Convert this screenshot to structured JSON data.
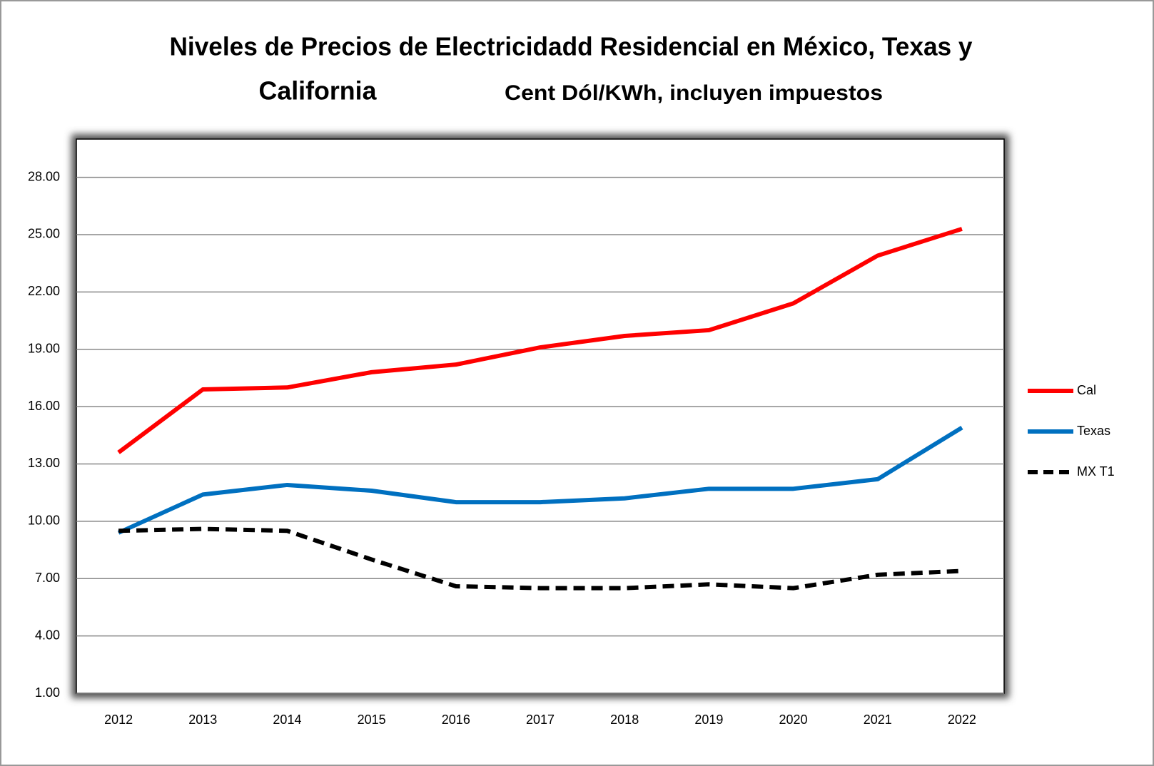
{
  "chart_data": {
    "type": "line",
    "title": [
      "Niveles de Precios de Electricidadd Residencial en México, Texas y",
      "California"
    ],
    "subtitle": "Cent Dól/KWh, incluyen impuestos",
    "categories": [
      "2012",
      "2013",
      "2014",
      "2015",
      "2016",
      "2017",
      "2018",
      "2019",
      "2020",
      "2021",
      "2022"
    ],
    "series": [
      {
        "name": "Cal",
        "color": "#ff0000",
        "dash": false,
        "values": [
          13.6,
          16.9,
          17.0,
          17.8,
          18.2,
          19.1,
          19.7,
          20.0,
          21.4,
          23.9,
          25.3
        ]
      },
      {
        "name": "Texas",
        "color": "#0070c0",
        "dash": false,
        "values": [
          9.4,
          11.4,
          11.9,
          11.6,
          11.0,
          11.0,
          11.2,
          11.7,
          11.7,
          12.2,
          14.9
        ]
      },
      {
        "name": "MX T1",
        "color": "#000000",
        "dash": true,
        "values": [
          9.5,
          9.6,
          9.5,
          8.0,
          6.6,
          6.5,
          6.5,
          6.7,
          6.5,
          7.2,
          7.4
        ]
      }
    ],
    "ylim": [
      1,
      30
    ],
    "yticks": [
      {
        "value": 1,
        "label": "1.00"
      },
      {
        "value": 4,
        "label": "4.00"
      },
      {
        "value": 7,
        "label": "7.00"
      },
      {
        "value": 10,
        "label": "10.00"
      },
      {
        "value": 13,
        "label": "13.00"
      },
      {
        "value": 16,
        "label": "16.00"
      },
      {
        "value": 19,
        "label": "19.00"
      },
      {
        "value": 22,
        "label": "22.00"
      },
      {
        "value": 25,
        "label": "25.00"
      },
      {
        "value": 28,
        "label": "28.00"
      }
    ],
    "grid": true,
    "legend": "right"
  }
}
